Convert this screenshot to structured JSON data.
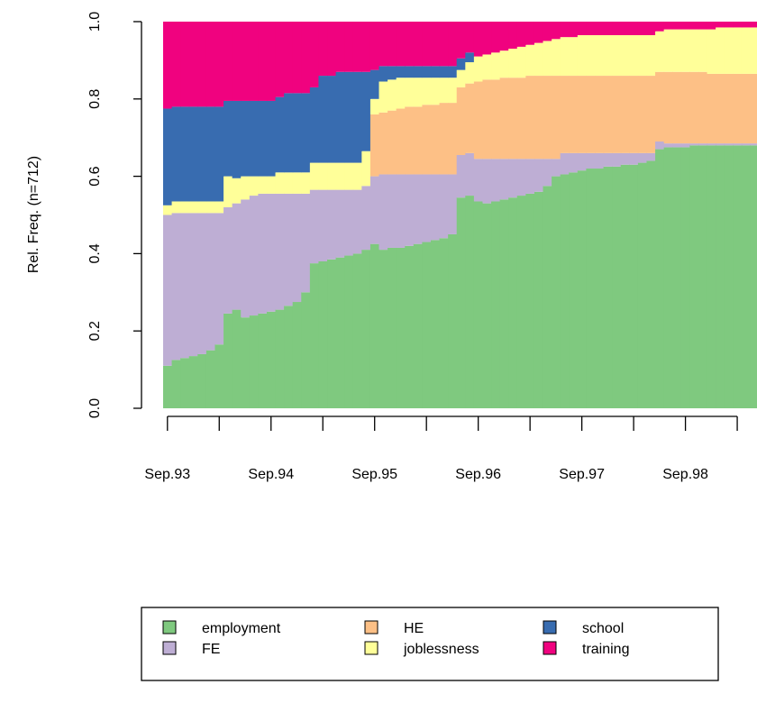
{
  "chart_data": {
    "type": "stacked-bar",
    "ylabel": "Rel. Freq. (n=712)",
    "ylim": [
      0,
      1
    ],
    "yticks": [
      {
        "value": 0,
        "label": "0.0"
      },
      0.2,
      0.4,
      0.6,
      0.8,
      {
        "value": 1,
        "label": "1.0"
      }
    ],
    "legend": "bottom",
    "categories": [
      "Sep.93",
      null,
      null,
      null,
      null,
      null,
      null,
      null,
      null,
      null,
      null,
      null,
      "Sep.94",
      null,
      null,
      null,
      null,
      null,
      null,
      null,
      null,
      null,
      null,
      null,
      "Sep.95",
      null,
      null,
      null,
      null,
      null,
      null,
      null,
      null,
      null,
      null,
      null,
      "Sep.96",
      null,
      null,
      null,
      null,
      null,
      null,
      null,
      null,
      null,
      null,
      null,
      "Sep.97",
      null,
      null,
      null,
      null,
      null,
      null,
      null,
      null,
      null,
      null,
      null,
      "Sep.98",
      null,
      null,
      null,
      null,
      null,
      null,
      null,
      null,
      null
    ],
    "series": [
      {
        "name": "employment",
        "color": "#7fc97f",
        "values": [
          0.11,
          0.125,
          0.13,
          0.135,
          0.14,
          0.15,
          0.165,
          0.245,
          0.255,
          0.235,
          0.24,
          0.245,
          0.25,
          0.255,
          0.265,
          0.275,
          0.3,
          0.375,
          0.38,
          0.385,
          0.39,
          0.395,
          0.4,
          0.41,
          0.425,
          0.41,
          0.415,
          0.415,
          0.42,
          0.425,
          0.43,
          0.435,
          0.44,
          0.45,
          0.545,
          0.55,
          0.535,
          0.53,
          0.535,
          0.54,
          0.545,
          0.55,
          0.555,
          0.56,
          0.575,
          0.6,
          0.605,
          0.61,
          0.615,
          0.62,
          0.62,
          0.625,
          0.625,
          0.63,
          0.63,
          0.635,
          0.64,
          0.67,
          0.675,
          0.675,
          0.675,
          0.68,
          0.68,
          0.68,
          0.68,
          0.68,
          0.68,
          0.68,
          0.68,
          0.68
        ]
      },
      {
        "name": "FE",
        "color": "#beaed4",
        "values": [
          0.39,
          0.38,
          0.375,
          0.37,
          0.365,
          0.355,
          0.34,
          0.275,
          0.275,
          0.305,
          0.31,
          0.31,
          0.305,
          0.3,
          0.29,
          0.28,
          0.255,
          0.19,
          0.185,
          0.18,
          0.175,
          0.17,
          0.165,
          0.165,
          0.175,
          0.195,
          0.19,
          0.19,
          0.185,
          0.18,
          0.175,
          0.17,
          0.165,
          0.155,
          0.11,
          0.11,
          0.11,
          0.115,
          0.11,
          0.105,
          0.1,
          0.095,
          0.09,
          0.085,
          0.07,
          0.045,
          0.055,
          0.05,
          0.045,
          0.04,
          0.04,
          0.035,
          0.035,
          0.03,
          0.03,
          0.025,
          0.02,
          0.02,
          0.01,
          0.01,
          0.01,
          0.005,
          0.005,
          0.005,
          0.005,
          0.005,
          0.005,
          0.005,
          0.005,
          0.005
        ]
      },
      {
        "name": "HE",
        "color": "#fdc086",
        "values": [
          0,
          0,
          0,
          0,
          0,
          0,
          0,
          0,
          0,
          0,
          0,
          0,
          0,
          0,
          0,
          0,
          0,
          0,
          0,
          0,
          0,
          0,
          0,
          0,
          0.16,
          0.16,
          0.165,
          0.17,
          0.175,
          0.175,
          0.18,
          0.18,
          0.185,
          0.185,
          0.175,
          0.18,
          0.2,
          0.205,
          0.205,
          0.21,
          0.21,
          0.21,
          0.215,
          0.215,
          0.215,
          0.215,
          0.2,
          0.2,
          0.2,
          0.2,
          0.2,
          0.2,
          0.2,
          0.2,
          0.2,
          0.2,
          0.2,
          0.18,
          0.185,
          0.185,
          0.185,
          0.185,
          0.185,
          0.18,
          0.18,
          0.18,
          0.18,
          0.18,
          0.18,
          0.18
        ]
      },
      {
        "name": "joblessness",
        "color": "#ffff99",
        "values": [
          0.025,
          0.03,
          0.03,
          0.03,
          0.03,
          0.03,
          0.03,
          0.08,
          0.065,
          0.06,
          0.05,
          0.045,
          0.045,
          0.055,
          0.055,
          0.055,
          0.055,
          0.07,
          0.07,
          0.07,
          0.07,
          0.07,
          0.07,
          0.09,
          0.04,
          0.08,
          0.08,
          0.08,
          0.075,
          0.075,
          0.07,
          0.07,
          0.065,
          0.065,
          0.045,
          0.055,
          0.065,
          0.065,
          0.07,
          0.07,
          0.075,
          0.08,
          0.08,
          0.085,
          0.09,
          0.095,
          0.1,
          0.1,
          0.105,
          0.105,
          0.105,
          0.105,
          0.105,
          0.105,
          0.105,
          0.105,
          0.105,
          0.105,
          0.11,
          0.11,
          0.11,
          0.11,
          0.11,
          0.115,
          0.12,
          0.12,
          0.12,
          0.12,
          0.12,
          0.12
        ]
      },
      {
        "name": "school",
        "color": "#386cb0",
        "values": [
          0.25,
          0.245,
          0.245,
          0.245,
          0.245,
          0.245,
          0.245,
          0.195,
          0.2,
          0.195,
          0.195,
          0.195,
          0.195,
          0.195,
          0.205,
          0.205,
          0.205,
          0.195,
          0.225,
          0.225,
          0.235,
          0.235,
          0.235,
          0.205,
          0.075,
          0.04,
          0.035,
          0.03,
          0.03,
          0.03,
          0.03,
          0.03,
          0.03,
          0.03,
          0.03,
          0.025,
          0,
          0,
          0,
          0,
          0,
          0,
          0,
          0,
          0,
          0,
          0,
          0,
          0,
          0,
          0,
          0,
          0,
          0,
          0,
          0,
          0,
          0,
          0,
          0,
          0,
          0,
          0,
          0,
          0,
          0,
          0,
          0,
          0,
          0
        ]
      },
      {
        "name": "training",
        "color": "#f0027f",
        "values": [
          0.225,
          0.22,
          0.22,
          0.22,
          0.22,
          0.22,
          0.22,
          0.205,
          0.205,
          0.205,
          0.205,
          0.205,
          0.205,
          0.195,
          0.185,
          0.185,
          0.185,
          0.17,
          0.14,
          0.14,
          0.13,
          0.13,
          0.13,
          0.13,
          0.125,
          0.115,
          0.115,
          0.115,
          0.115,
          0.115,
          0.115,
          0.115,
          0.115,
          0.115,
          0.095,
          0.08,
          0.09,
          0.085,
          0.08,
          0.075,
          0.07,
          0.065,
          0.06,
          0.055,
          0.05,
          0.045,
          0.04,
          0.04,
          0.035,
          0.035,
          0.035,
          0.035,
          0.035,
          0.035,
          0.035,
          0.035,
          0.035,
          0.025,
          0.02,
          0.02,
          0.02,
          0.02,
          0.02,
          0.02,
          0.015,
          0.015,
          0.015,
          0.015,
          0.015,
          0.015
        ]
      }
    ]
  }
}
